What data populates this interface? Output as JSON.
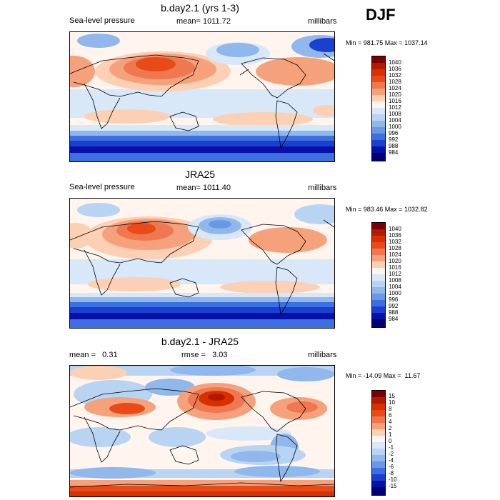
{
  "season": "DJF",
  "chart_data": [
    {
      "type": "heatmap",
      "id": "model",
      "title": "b.day2.1 (yrs 1-3)",
      "left_label": "Sea-level pressure",
      "center_label": "mean= 1011.72",
      "units": "millibars",
      "minmax": "Min = 981.75 Max = 1037.14",
      "levels": [
        "1040",
        "1036",
        "1032",
        "1028",
        "1024",
        "1020",
        "1016",
        "1012",
        "1008",
        "1004",
        "1000",
        "996",
        "992",
        "988",
        "984"
      ],
      "colors": [
        "#7a0000",
        "#b01a00",
        "#d83000",
        "#e84a18",
        "#f07850",
        "#f5a27c",
        "#fbd0b4",
        "#fff4ee",
        "#d8e8f8",
        "#b8d4f2",
        "#90b8ec",
        "#6a98e4",
        "#3e6fe0",
        "#1a40d0",
        "#0810a8",
        "#000070"
      ]
    },
    {
      "type": "heatmap",
      "id": "obs",
      "title": "JRA25",
      "left_label": "Sea-level pressure",
      "center_label": "mean= 1011.40",
      "units": "millibars",
      "minmax": "Min = 983.46 Max = 1032.82",
      "levels": [
        "1040",
        "1036",
        "1032",
        "1028",
        "1024",
        "1020",
        "1016",
        "1012",
        "1008",
        "1004",
        "1000",
        "996",
        "992",
        "988",
        "984"
      ],
      "colors": [
        "#7a0000",
        "#b01a00",
        "#d83000",
        "#e84a18",
        "#f07850",
        "#f5a27c",
        "#fbd0b4",
        "#fff4ee",
        "#d8e8f8",
        "#b8d4f2",
        "#90b8ec",
        "#6a98e4",
        "#3e6fe0",
        "#1a40d0",
        "#0810a8",
        "#000070"
      ]
    },
    {
      "type": "heatmap",
      "id": "diff",
      "title": "b.day2.1 - JRA25",
      "left_label": "mean =   0.31",
      "center_label": "rmse =   3.03",
      "units": "millibars",
      "minmax": "Min = -14.09 Max =  11.67",
      "levels": [
        "15",
        "10",
        "8",
        "6",
        "4",
        "2",
        "1",
        "0",
        "-1",
        "-2",
        "-4",
        "-6",
        "-8",
        "-10",
        "-15"
      ],
      "colors": [
        "#7a0000",
        "#b01a00",
        "#d83000",
        "#e84a18",
        "#f07850",
        "#f5a27c",
        "#fbd0b4",
        "#fff4ee",
        "#d8e8f8",
        "#b8d4f2",
        "#90b8ec",
        "#6a98e4",
        "#3e6fe0",
        "#1a40d0",
        "#0810a8",
        "#000070"
      ]
    }
  ]
}
